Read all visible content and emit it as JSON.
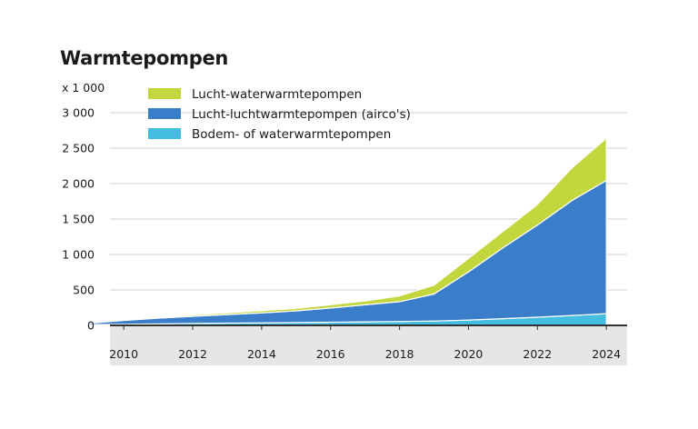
{
  "chart_data": {
    "type": "area",
    "stacked": true,
    "title": "Warmtepompen",
    "y_unit_label": "x 1 000",
    "x": [
      2009,
      2010,
      2011,
      2012,
      2013,
      2014,
      2015,
      2016,
      2017,
      2018,
      2019,
      2020,
      2021,
      2022,
      2023,
      2024
    ],
    "x_ticks": [
      "2010",
      "2012",
      "2014",
      "2016",
      "2018",
      "2020",
      "2022",
      "2024"
    ],
    "y_ticks": [
      "0",
      "500",
      "1 000",
      "1 500",
      "2 000",
      "2 500",
      "3 000"
    ],
    "ylim": [
      0,
      3000
    ],
    "grid": true,
    "legend_position": "top-left",
    "series": [
      {
        "name": "Bodem- of waterwarmtepompen",
        "color": "#44bde0",
        "values": [
          10,
          15,
          22,
          28,
          32,
          36,
          40,
          45,
          50,
          55,
          62,
          75,
          95,
          115,
          140,
          165
        ]
      },
      {
        "name": "Lucht-luchtwarmtepompen (airco's)",
        "color": "#3a7dc9",
        "values": [
          20,
          55,
          80,
          100,
          120,
          140,
          165,
          200,
          240,
          280,
          380,
          680,
          1000,
          1300,
          1620,
          1880
        ]
      },
      {
        "name": "Lucht-waterwarmtepompen",
        "color": "#c4d63d",
        "values": [
          5,
          10,
          15,
          20,
          25,
          30,
          35,
          45,
          55,
          80,
          125,
          190,
          230,
          290,
          460,
          595
        ]
      }
    ],
    "legend_order": [
      "Lucht-waterwarmtepompen",
      "Lucht-luchtwarmtepompen (airco's)",
      "Bodem- of waterwarmtepompen"
    ],
    "colors": {
      "grid": "#cfcfcf",
      "axis": "#333333",
      "x_axis_band": "#e6e6e6"
    }
  }
}
